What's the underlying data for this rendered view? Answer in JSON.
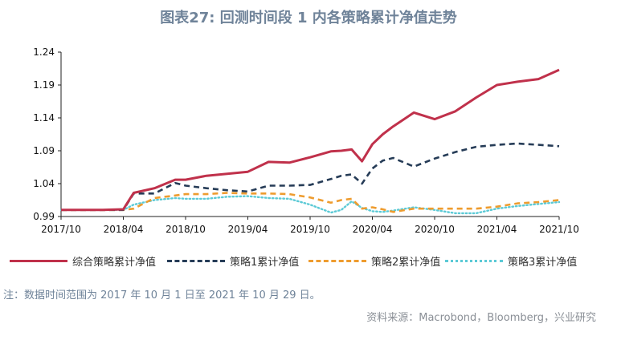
{
  "header": {
    "title": "图表27: 回测时间段 1 内各策略累计净值走势"
  },
  "footer": {
    "note": "注：数据时间范围为 2017 年 10 月 1 日至 2021 年 10 月 29 日。",
    "source": "资料来源：Macrobond，Bloomberg，兴业研究"
  },
  "chart_data": {
    "type": "line",
    "title": "图表27: 回测时间段 1 内各策略累计净值走势",
    "xlabel": "",
    "ylabel": "",
    "x_range": [
      "2017-10",
      "2021-10"
    ],
    "x_ticks": [
      "2017/10",
      "2018/04",
      "2018/10",
      "2019/04",
      "2019/10",
      "2020/04",
      "2020/10",
      "2021/04",
      "2021/10"
    ],
    "ylim": [
      0.99,
      1.24
    ],
    "y_ticks": [
      "0.99",
      "1.04",
      "1.09",
      "1.14",
      "1.19",
      "1.24"
    ],
    "grid": false,
    "legend_position": "bottom",
    "x": [
      "2017-10",
      "2017-12",
      "2018-02",
      "2018-04",
      "2018-05",
      "2018-07",
      "2018-09",
      "2018-10",
      "2018-12",
      "2019-02",
      "2019-04",
      "2019-06",
      "2019-08",
      "2019-10",
      "2019-12",
      "2020-01",
      "2020-02",
      "2020-03",
      "2020-04",
      "2020-05",
      "2020-06",
      "2020-08",
      "2020-10",
      "2020-12",
      "2021-02",
      "2021-04",
      "2021-06",
      "2021-08",
      "2021-10"
    ],
    "series": [
      {
        "name": "综合策略累计净值",
        "color": "#c0314b",
        "dash": "solid",
        "values": [
          1.0,
          1.0,
          1.0,
          1.001,
          1.026,
          1.033,
          1.046,
          1.046,
          1.052,
          1.055,
          1.058,
          1.073,
          1.072,
          1.08,
          1.089,
          1.09,
          1.092,
          1.074,
          1.1,
          1.115,
          1.127,
          1.148,
          1.138,
          1.15,
          1.171,
          1.19,
          1.195,
          1.199,
          1.213
        ]
      },
      {
        "name": "策略1累计净值",
        "color": "#263c57",
        "dash": "dashed",
        "values": [
          1.0,
          1.0,
          1.0,
          1.0,
          1.025,
          1.025,
          1.041,
          1.037,
          1.033,
          1.03,
          1.028,
          1.037,
          1.037,
          1.038,
          1.047,
          1.052,
          1.054,
          1.04,
          1.063,
          1.075,
          1.079,
          1.066,
          1.078,
          1.088,
          1.096,
          1.099,
          1.101,
          1.099,
          1.097
        ]
      },
      {
        "name": "策略2累计净值",
        "color": "#ee9c2f",
        "dash": "dashed",
        "values": [
          1.0,
          1.0,
          1.0,
          1.0,
          1.002,
          1.018,
          1.022,
          1.024,
          1.024,
          1.026,
          1.025,
          1.025,
          1.024,
          1.019,
          1.011,
          1.015,
          1.017,
          1.002,
          1.004,
          1.001,
          0.997,
          1.002,
          1.002,
          1.002,
          1.002,
          1.005,
          1.01,
          1.012,
          1.015
        ]
      },
      {
        "name": "策略3累计净值",
        "color": "#5ccad6",
        "dash": "dotted",
        "values": [
          1.0,
          1.0,
          1.0,
          1.0,
          1.008,
          1.015,
          1.018,
          1.017,
          1.017,
          1.02,
          1.021,
          1.018,
          1.017,
          1.008,
          0.996,
          1.0,
          1.013,
          1.003,
          0.998,
          0.997,
          0.999,
          1.004,
          1.0,
          0.995,
          0.995,
          1.002,
          1.006,
          1.009,
          1.012
        ]
      }
    ]
  }
}
